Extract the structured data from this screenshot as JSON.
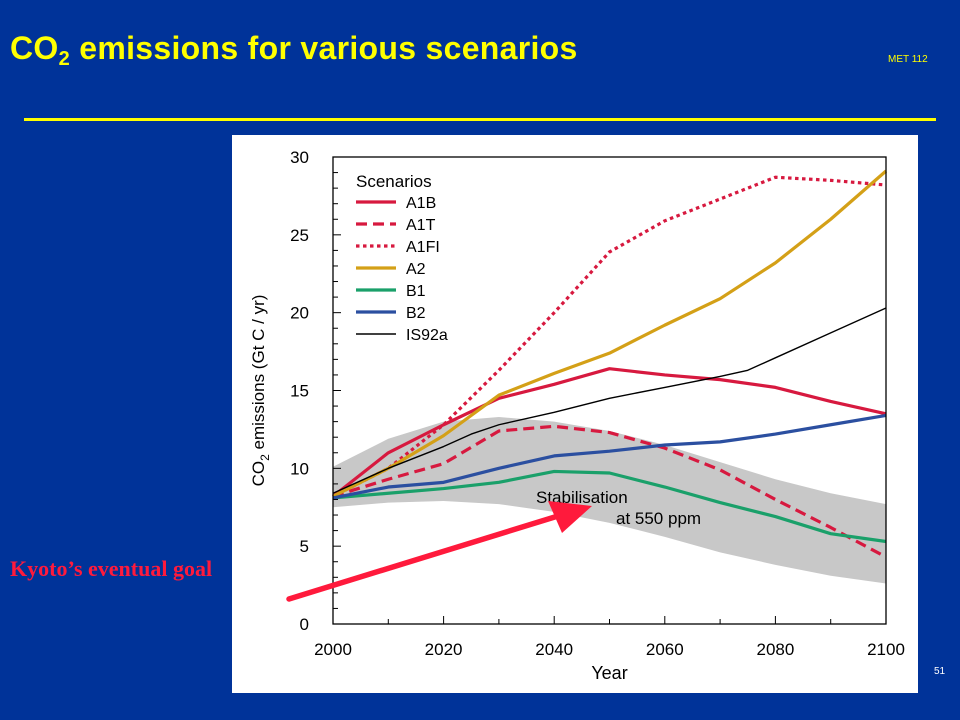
{
  "slide": {
    "title_main": "CO",
    "title_sub": "2",
    "title_rest": " emissions for various scenarios",
    "course": "MET 112",
    "page_number": "51",
    "annotation": "Kyoto’s eventual goal"
  },
  "colors": {
    "background": "#003399",
    "title": "#ffff00",
    "annotation": "#ff1a3c"
  },
  "chart_data": {
    "type": "line",
    "xlabel": "Year",
    "ylabel_main": "CO",
    "ylabel_sub": "2",
    "ylabel_rest": " emissions (Gt C / yr)",
    "xlim": [
      2000,
      2100
    ],
    "ylim": [
      0,
      30
    ],
    "x_ticks": [
      2000,
      2020,
      2040,
      2060,
      2080,
      2100
    ],
    "y_ticks": [
      0,
      5,
      10,
      15,
      20,
      25,
      30
    ],
    "legend_title": "Scenarios",
    "legend_position": "top-left",
    "band_label_line1": "Stabilisation",
    "band_label_line2": "at 550 ppm",
    "band": {
      "x": [
        2000,
        2010,
        2020,
        2030,
        2040,
        2050,
        2060,
        2070,
        2080,
        2090,
        2100
      ],
      "upper": [
        10.1,
        11.9,
        13.0,
        13.3,
        13.0,
        12.4,
        11.5,
        10.4,
        9.3,
        8.4,
        7.7
      ],
      "lower": [
        7.5,
        7.8,
        7.9,
        7.7,
        7.2,
        6.5,
        5.6,
        4.6,
        3.8,
        3.1,
        2.6
      ]
    },
    "series": [
      {
        "name": "A1B",
        "color": "#d7193f",
        "dash": "solid",
        "width": 3.2,
        "x": [
          2000,
          2010,
          2020,
          2030,
          2040,
          2050,
          2060,
          2070,
          2080,
          2090,
          2100
        ],
        "y": [
          8.2,
          11.0,
          12.8,
          14.5,
          15.4,
          16.4,
          16.0,
          15.7,
          15.2,
          14.3,
          13.5
        ]
      },
      {
        "name": "A1T",
        "color": "#d7193f",
        "dash": "dashed",
        "width": 3.2,
        "x": [
          2000,
          2010,
          2020,
          2030,
          2040,
          2050,
          2060,
          2070,
          2080,
          2090,
          2100
        ],
        "y": [
          8.2,
          9.3,
          10.3,
          12.4,
          12.7,
          12.3,
          11.3,
          9.9,
          8.0,
          6.2,
          4.3
        ]
      },
      {
        "name": "A1FI",
        "color": "#d7193f",
        "dash": "dotted",
        "width": 3.2,
        "x": [
          2000,
          2010,
          2020,
          2030,
          2040,
          2050,
          2060,
          2070,
          2080,
          2090,
          2100
        ],
        "y": [
          8.2,
          10.0,
          12.8,
          16.3,
          20.0,
          23.9,
          25.9,
          27.3,
          28.7,
          28.5,
          28.2
        ]
      },
      {
        "name": "A2",
        "color": "#d4a017",
        "dash": "solid",
        "width": 3.2,
        "x": [
          2000,
          2010,
          2020,
          2030,
          2040,
          2050,
          2060,
          2070,
          2080,
          2090,
          2100
        ],
        "y": [
          8.2,
          10.0,
          12.1,
          14.7,
          16.1,
          17.4,
          19.2,
          20.9,
          23.2,
          26.0,
          29.1
        ]
      },
      {
        "name": "B1",
        "color": "#1aa06a",
        "dash": "solid",
        "width": 3.2,
        "x": [
          2000,
          2010,
          2020,
          2030,
          2040,
          2050,
          2060,
          2070,
          2080,
          2090,
          2100
        ],
        "y": [
          8.1,
          8.4,
          8.7,
          9.1,
          9.8,
          9.7,
          8.8,
          7.8,
          6.9,
          5.8,
          5.3
        ]
      },
      {
        "name": "B2",
        "color": "#2b4fa0",
        "dash": "solid",
        "width": 3.2,
        "x": [
          2000,
          2010,
          2020,
          2030,
          2040,
          2050,
          2060,
          2070,
          2080,
          2090,
          2100
        ],
        "y": [
          8.1,
          8.8,
          9.1,
          10.0,
          10.8,
          11.1,
          11.5,
          11.7,
          12.2,
          12.8,
          13.4
        ]
      },
      {
        "name": "IS92a",
        "color": "#000000",
        "dash": "solid",
        "width": 1.4,
        "x": [
          2000,
          2010,
          2020,
          2025,
          2030,
          2040,
          2050,
          2060,
          2070,
          2075,
          2080,
          2090,
          2100
        ],
        "y": [
          8.4,
          10.0,
          11.4,
          12.2,
          12.8,
          13.6,
          14.5,
          15.2,
          15.9,
          16.3,
          17.1,
          18.7,
          20.3
        ]
      }
    ]
  }
}
